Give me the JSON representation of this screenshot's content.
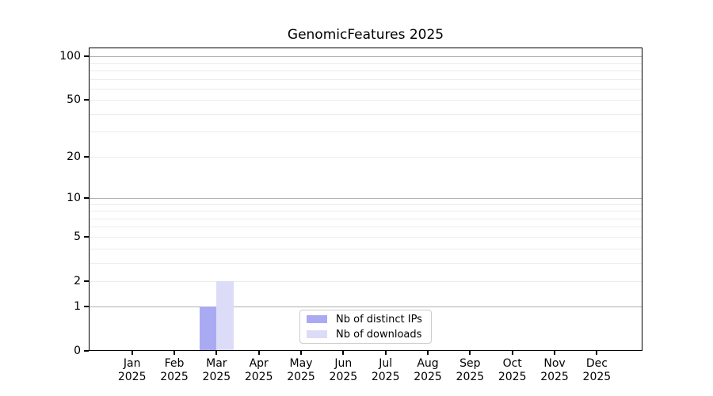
{
  "title": "GenomicFeatures 2025",
  "chart_data": {
    "type": "bar",
    "title": "GenomicFeatures 2025",
    "categories": [
      "Jan",
      "Feb",
      "Mar",
      "Apr",
      "May",
      "Jun",
      "Jul",
      "Aug",
      "Sep",
      "Oct",
      "Nov",
      "Dec"
    ],
    "x_year_label": "2025",
    "series": [
      {
        "name": "Nb of distinct IPs",
        "color": "#aaaaf2",
        "values": [
          0,
          0,
          1,
          0,
          0,
          0,
          0,
          0,
          0,
          0,
          0,
          0
        ]
      },
      {
        "name": "Nb of downloads",
        "color": "#dcdcf8",
        "values": [
          0,
          0,
          2,
          0,
          0,
          0,
          0,
          0,
          0,
          0,
          0,
          0
        ]
      }
    ],
    "y_scale": "log1p",
    "y_ticks": [
      0,
      1,
      2,
      5,
      10,
      20,
      50,
      100
    ],
    "ylim": [
      0,
      115
    ],
    "grid": true,
    "minor_gridlines": [
      2,
      3,
      4,
      5,
      6,
      7,
      8,
      9,
      20,
      30,
      40,
      50,
      60,
      70,
      80,
      90
    ],
    "emphasized_gridlines": [
      1,
      10,
      100
    ],
    "legend": {
      "position": "lower-center",
      "entries": [
        "Nb of distinct IPs",
        "Nb of downloads"
      ]
    },
    "colors": {
      "minor_grid": "#ececec",
      "major_grid": "#b0b0b0",
      "axis": "#000000",
      "legend_border": "#cccccc",
      "background": "#ffffff"
    }
  }
}
